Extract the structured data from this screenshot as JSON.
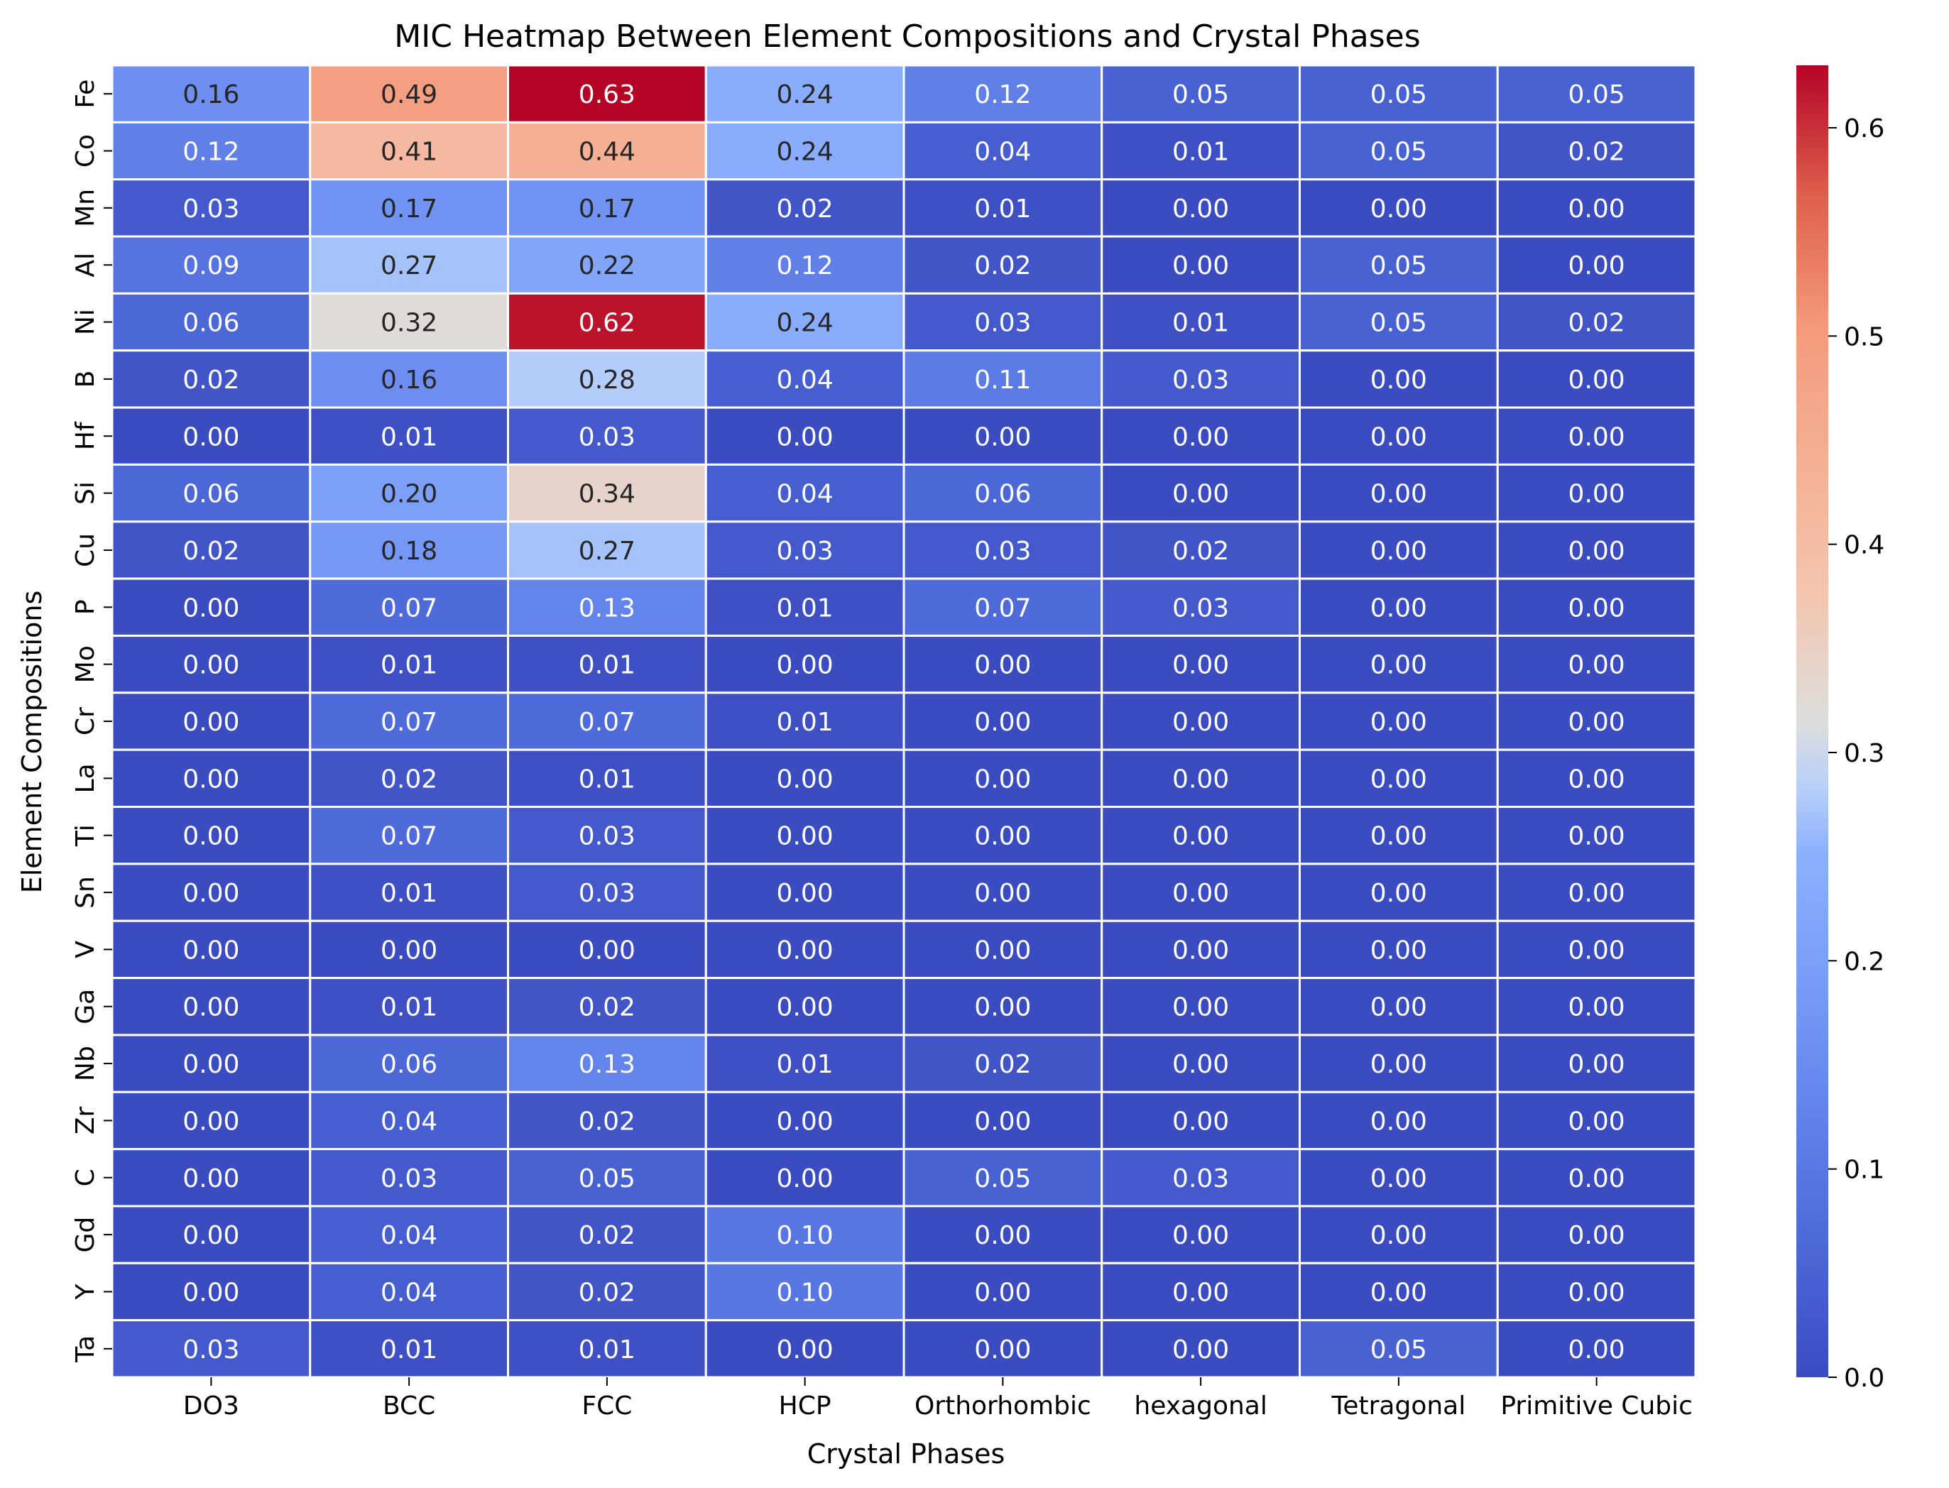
{
  "chart_data": {
    "type": "heatmap",
    "title": "MIC Heatmap Between Element Compositions and Crystal Phases",
    "xlabel": "Crystal Phases",
    "ylabel": "Element Compositions",
    "colormap": "coolwarm",
    "colorbar": {
      "min": 0.0,
      "max": 0.63,
      "ticks": [
        "0.0",
        "0.1",
        "0.2",
        "0.3",
        "0.4",
        "0.5",
        "0.6"
      ]
    },
    "x_categories": [
      "DO3",
      "BCC",
      "FCC",
      "HCP",
      "Orthorhombic",
      "hexagonal",
      "Tetragonal",
      "Primitive Cubic"
    ],
    "y_categories": [
      "Fe",
      "Co",
      "Mn",
      "Al",
      "Ni",
      "B",
      "Hf",
      "Si",
      "Cu",
      "P",
      "Mo",
      "Cr",
      "La",
      "Ti",
      "Sn",
      "V",
      "Ga",
      "Nb",
      "Zr",
      "C",
      "Gd",
      "Y",
      "Ta"
    ],
    "values": [
      [
        0.16,
        0.49,
        0.63,
        0.24,
        0.12,
        0.05,
        0.05,
        0.05
      ],
      [
        0.12,
        0.41,
        0.44,
        0.24,
        0.04,
        0.01,
        0.05,
        0.02
      ],
      [
        0.03,
        0.17,
        0.17,
        0.02,
        0.01,
        0.0,
        0.0,
        0.0
      ],
      [
        0.09,
        0.27,
        0.22,
        0.12,
        0.02,
        0.0,
        0.05,
        0.0
      ],
      [
        0.06,
        0.32,
        0.62,
        0.24,
        0.03,
        0.01,
        0.05,
        0.02
      ],
      [
        0.02,
        0.16,
        0.28,
        0.04,
        0.11,
        0.03,
        0.0,
        0.0
      ],
      [
        0.0,
        0.01,
        0.03,
        0.0,
        0.0,
        0.0,
        0.0,
        0.0
      ],
      [
        0.06,
        0.2,
        0.34,
        0.04,
        0.06,
        0.0,
        0.0,
        0.0
      ],
      [
        0.02,
        0.18,
        0.27,
        0.03,
        0.03,
        0.02,
        0.0,
        0.0
      ],
      [
        0.0,
        0.07,
        0.13,
        0.01,
        0.07,
        0.03,
        0.0,
        0.0
      ],
      [
        0.0,
        0.01,
        0.01,
        0.0,
        0.0,
        0.0,
        0.0,
        0.0
      ],
      [
        0.0,
        0.07,
        0.07,
        0.01,
        0.0,
        0.0,
        0.0,
        0.0
      ],
      [
        0.0,
        0.02,
        0.01,
        0.0,
        0.0,
        0.0,
        0.0,
        0.0
      ],
      [
        0.0,
        0.07,
        0.03,
        0.0,
        0.0,
        0.0,
        0.0,
        0.0
      ],
      [
        0.0,
        0.01,
        0.03,
        0.0,
        0.0,
        0.0,
        0.0,
        0.0
      ],
      [
        0.0,
        0.0,
        0.0,
        0.0,
        0.0,
        0.0,
        0.0,
        0.0
      ],
      [
        0.0,
        0.01,
        0.02,
        0.0,
        0.0,
        0.0,
        0.0,
        0.0
      ],
      [
        0.0,
        0.06,
        0.13,
        0.01,
        0.02,
        0.0,
        0.0,
        0.0
      ],
      [
        0.0,
        0.04,
        0.02,
        0.0,
        0.0,
        0.0,
        0.0,
        0.0
      ],
      [
        0.0,
        0.03,
        0.05,
        0.0,
        0.05,
        0.03,
        0.0,
        0.0
      ],
      [
        0.0,
        0.04,
        0.02,
        0.1,
        0.0,
        0.0,
        0.0,
        0.0
      ],
      [
        0.0,
        0.04,
        0.02,
        0.1,
        0.0,
        0.0,
        0.0,
        0.0
      ],
      [
        0.03,
        0.01,
        0.01,
        0.0,
        0.0,
        0.0,
        0.05,
        0.0
      ]
    ],
    "value_format": "2 decimals"
  }
}
